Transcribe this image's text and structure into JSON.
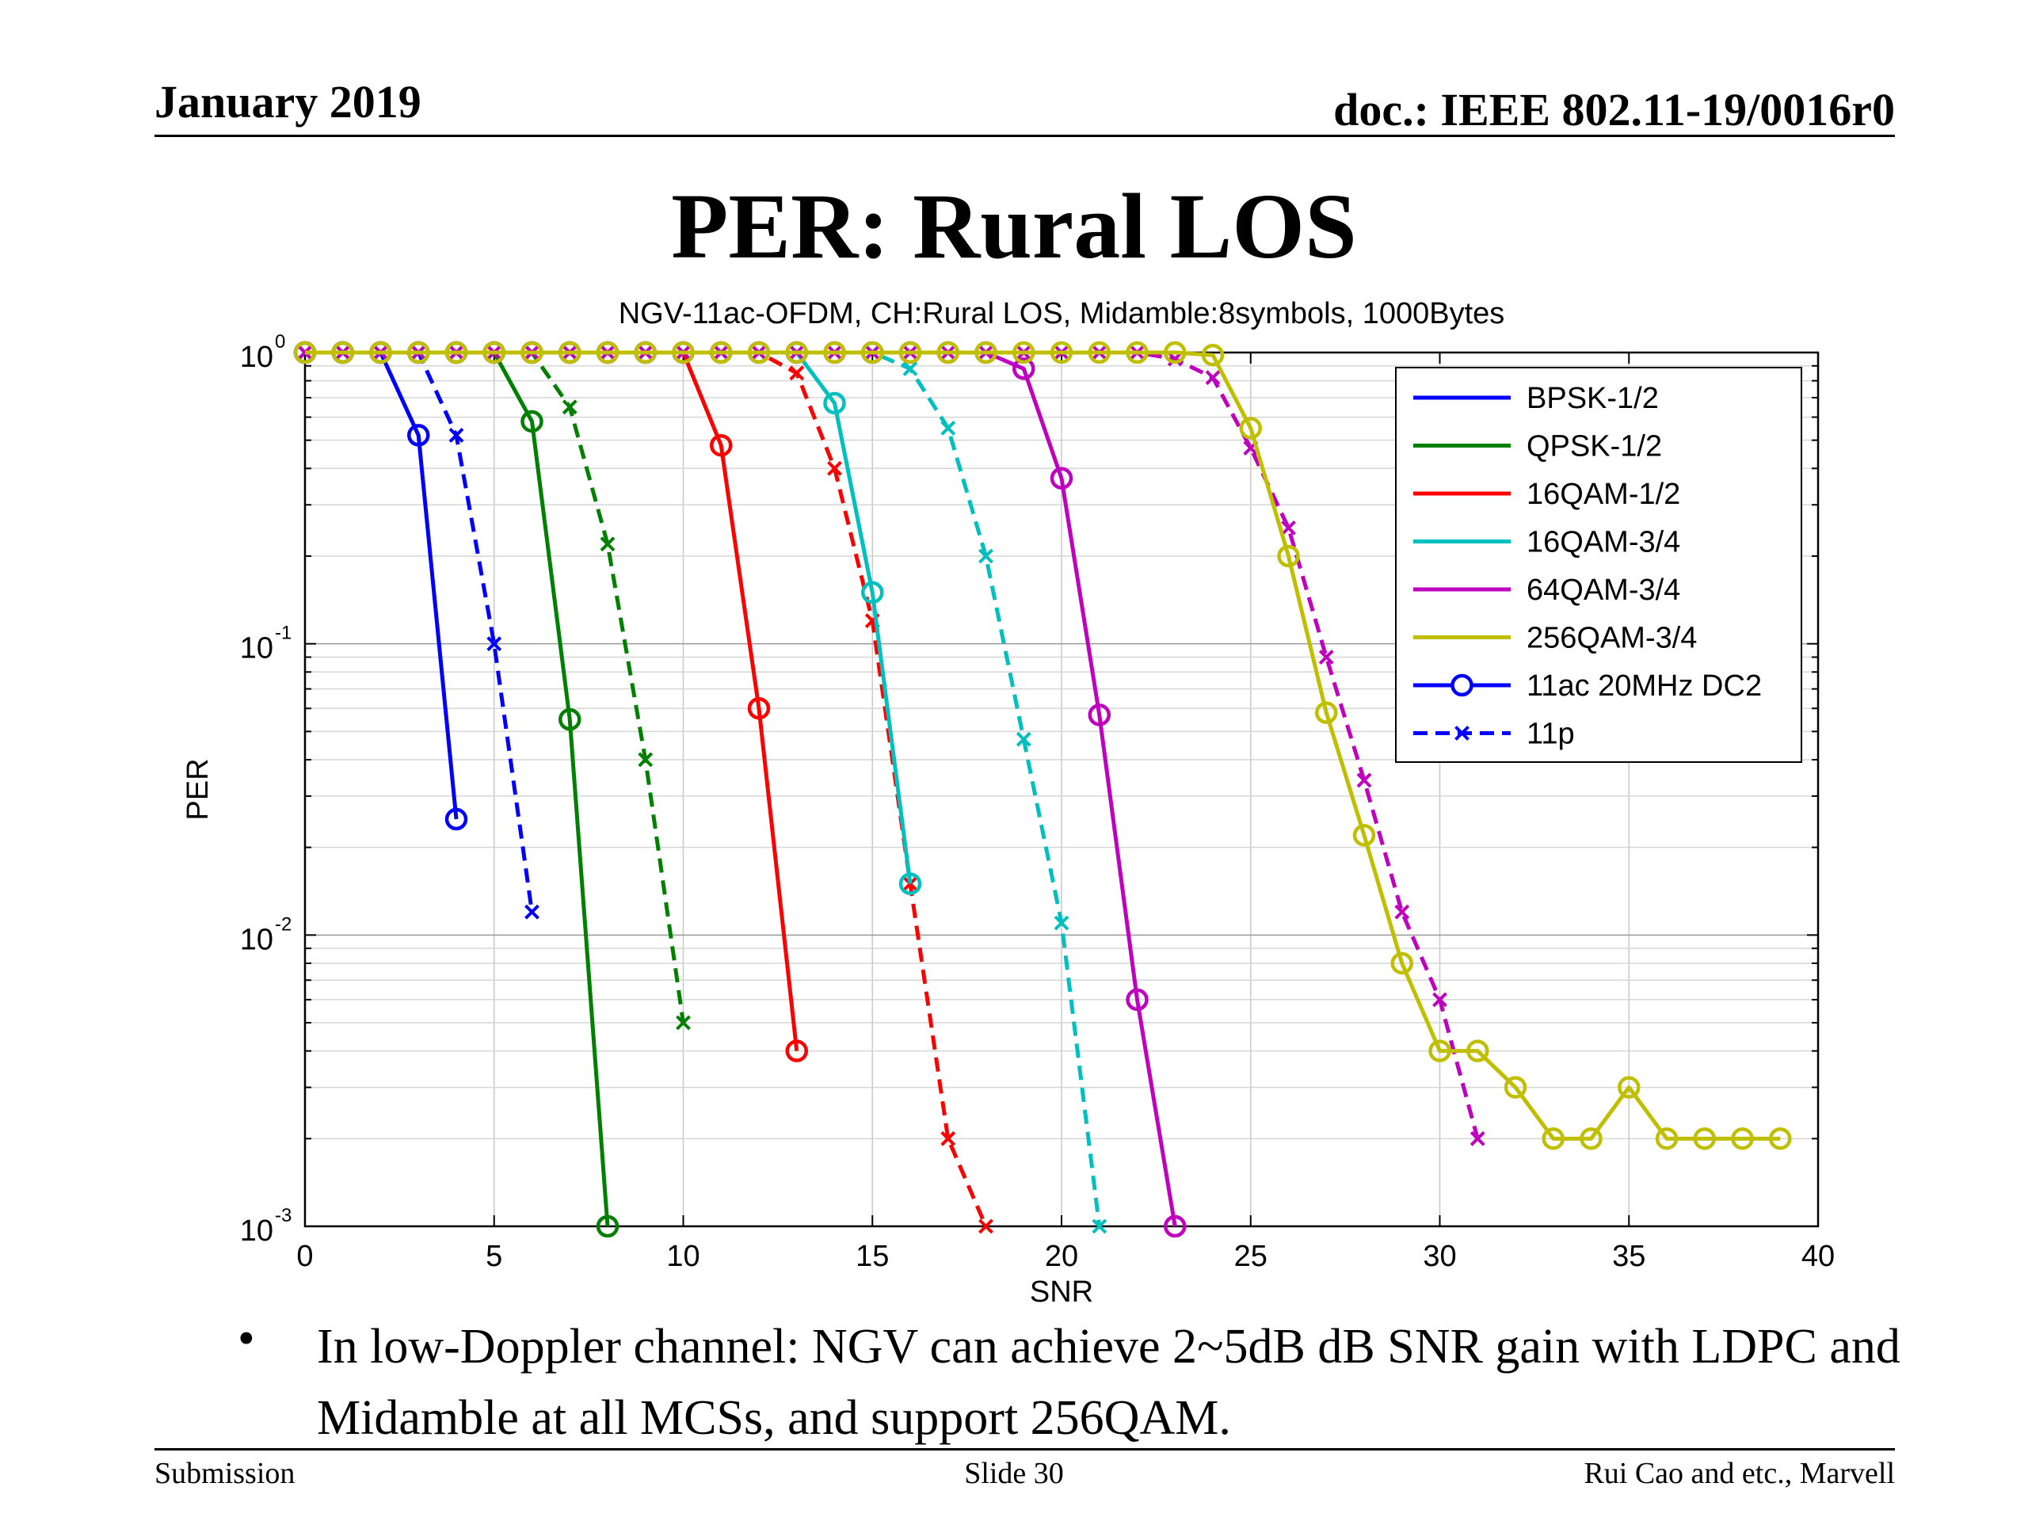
{
  "header": {
    "date": "January 2019",
    "doc": "doc.: IEEE 802.11-19/0016r0"
  },
  "slide_title": "PER: Rural LOS",
  "bullet": {
    "symbol": "•",
    "text": "In low-Doppler channel: NGV can achieve 2~5dB dB SNR gain with LDPC and Midamble at all MCSs, and support 256QAM."
  },
  "footer": {
    "left": "Submission",
    "center": "Slide 30",
    "right": "Rui Cao and etc., Marvell"
  },
  "chart_data": {
    "type": "line",
    "title": "NGV-11ac-OFDM, CH:Rural LOS, Midamble:8symbols, 1000Bytes",
    "xlabel": "SNR",
    "ylabel": "PER",
    "xlim": [
      0,
      40
    ],
    "ylim": [
      0.001,
      1
    ],
    "yscale": "log",
    "grid": true,
    "legend_position": "top-right",
    "xticks": [
      "0",
      "5",
      "10",
      "15",
      "20",
      "25",
      "30",
      "35",
      "40"
    ],
    "yticks": [
      {
        "value": 1,
        "base": "10",
        "exp": "0"
      },
      {
        "value": 0.1,
        "base": "10",
        "exp": "-1"
      },
      {
        "value": 0.01,
        "base": "10",
        "exp": "-2"
      },
      {
        "value": 0.001,
        "base": "10",
        "exp": "-3"
      }
    ],
    "legend": [
      {
        "label": "BPSK-1/2",
        "color": "#0000ff",
        "style": "line"
      },
      {
        "label": "QPSK-1/2",
        "color": "#008000",
        "style": "line"
      },
      {
        "label": "16QAM-1/2",
        "color": "#ff0000",
        "style": "line"
      },
      {
        "label": "16QAM-3/4",
        "color": "#00bfbf",
        "style": "line"
      },
      {
        "label": "64QAM-3/4",
        "color": "#bf00bf",
        "style": "line"
      },
      {
        "label": "256QAM-3/4",
        "color": "#bfbf00",
        "style": "line"
      },
      {
        "label": "11ac 20MHz DC2",
        "color": "#0000ff",
        "style": "solid-circle"
      },
      {
        "label": "11p",
        "color": "#0000ff",
        "style": "dashed-x"
      }
    ],
    "series": [
      {
        "mcs": "BPSK-1/2",
        "system": "11ac 20MHz DC2",
        "color": "#0000ff",
        "x": [
          0,
          1,
          2,
          3,
          4
        ],
        "y": [
          1,
          1,
          1,
          0.52,
          0.025
        ]
      },
      {
        "mcs": "BPSK-1/2",
        "system": "11p",
        "color": "#0000ff",
        "x": [
          0,
          1,
          2,
          3,
          4,
          5,
          6
        ],
        "y": [
          1,
          1,
          1,
          1,
          0.52,
          0.1,
          0.012
        ]
      },
      {
        "mcs": "QPSK-1/2",
        "system": "11ac 20MHz DC2",
        "color": "#008000",
        "x": [
          0,
          1,
          2,
          3,
          4,
          5,
          6,
          7,
          8
        ],
        "y": [
          1,
          1,
          1,
          1,
          1,
          1,
          0.58,
          0.055,
          0.001
        ]
      },
      {
        "mcs": "QPSK-1/2",
        "system": "11p",
        "color": "#008000",
        "x": [
          0,
          1,
          2,
          3,
          4,
          5,
          6,
          7,
          8,
          9,
          10
        ],
        "y": [
          1,
          1,
          1,
          1,
          1,
          1,
          1,
          0.65,
          0.22,
          0.04,
          0.005
        ]
      },
      {
        "mcs": "16QAM-1/2",
        "system": "11ac 20MHz DC2",
        "color": "#ff0000",
        "x": [
          0,
          1,
          2,
          3,
          4,
          5,
          6,
          7,
          8,
          9,
          10,
          11,
          12,
          13
        ],
        "y": [
          1,
          1,
          1,
          1,
          1,
          1,
          1,
          1,
          1,
          1,
          1,
          0.48,
          0.06,
          0.004
        ]
      },
      {
        "mcs": "16QAM-1/2",
        "system": "11p",
        "color": "#ff0000",
        "x": [
          0,
          1,
          2,
          3,
          4,
          5,
          6,
          7,
          8,
          9,
          10,
          11,
          12,
          13,
          14,
          15,
          16,
          17,
          18
        ],
        "y": [
          1,
          1,
          1,
          1,
          1,
          1,
          1,
          1,
          1,
          1,
          1,
          1,
          1,
          0.85,
          0.4,
          0.12,
          0.015,
          0.002,
          0.001
        ]
      },
      {
        "mcs": "16QAM-3/4",
        "system": "11ac 20MHz DC2",
        "color": "#00bfbf",
        "x": [
          0,
          1,
          2,
          3,
          4,
          5,
          6,
          7,
          8,
          9,
          10,
          11,
          12,
          13,
          14,
          15,
          16
        ],
        "y": [
          1,
          1,
          1,
          1,
          1,
          1,
          1,
          1,
          1,
          1,
          1,
          1,
          1,
          1,
          0.67,
          0.15,
          0.015
        ]
      },
      {
        "mcs": "16QAM-3/4",
        "system": "11p",
        "color": "#00bfbf",
        "x": [
          0,
          1,
          2,
          3,
          4,
          5,
          6,
          7,
          8,
          9,
          10,
          11,
          12,
          13,
          14,
          15,
          16,
          17,
          18,
          19,
          20,
          21
        ],
        "y": [
          1,
          1,
          1,
          1,
          1,
          1,
          1,
          1,
          1,
          1,
          1,
          1,
          1,
          1,
          1,
          1,
          0.88,
          0.55,
          0.2,
          0.047,
          0.011,
          0.001
        ]
      },
      {
        "mcs": "64QAM-3/4",
        "system": "11ac 20MHz DC2",
        "color": "#bf00bf",
        "x": [
          0,
          1,
          2,
          3,
          4,
          5,
          6,
          7,
          8,
          9,
          10,
          11,
          12,
          13,
          14,
          15,
          16,
          17,
          18,
          19,
          20,
          21,
          22,
          23
        ],
        "y": [
          1,
          1,
          1,
          1,
          1,
          1,
          1,
          1,
          1,
          1,
          1,
          1,
          1,
          1,
          1,
          1,
          1,
          1,
          1,
          0.88,
          0.37,
          0.057,
          0.006,
          0.001
        ]
      },
      {
        "mcs": "64QAM-3/4",
        "system": "11p",
        "color": "#bf00bf",
        "x": [
          0,
          1,
          2,
          3,
          4,
          5,
          6,
          7,
          8,
          9,
          10,
          11,
          12,
          13,
          14,
          15,
          16,
          17,
          18,
          19,
          20,
          21,
          22,
          23,
          24,
          25,
          26,
          27,
          28,
          29,
          30,
          31
        ],
        "y": [
          1,
          1,
          1,
          1,
          1,
          1,
          1,
          1,
          1,
          1,
          1,
          1,
          1,
          1,
          1,
          1,
          1,
          1,
          1,
          1,
          1,
          1,
          1,
          0.95,
          0.82,
          0.47,
          0.25,
          0.09,
          0.034,
          0.012,
          0.006,
          0.002
        ]
      },
      {
        "mcs": "256QAM-3/4",
        "system": "11ac 20MHz DC2",
        "color": "#bfbf00",
        "x": [
          0,
          1,
          2,
          3,
          4,
          5,
          6,
          7,
          8,
          9,
          10,
          11,
          12,
          13,
          14,
          15,
          16,
          17,
          18,
          19,
          20,
          21,
          22,
          23,
          24,
          25,
          26,
          27,
          28,
          29,
          30,
          31,
          32,
          33,
          34,
          35,
          36,
          37,
          38,
          39
        ],
        "y": [
          1,
          1,
          1,
          1,
          1,
          1,
          1,
          1,
          1,
          1,
          1,
          1,
          1,
          1,
          1,
          1,
          1,
          1,
          1,
          1,
          1,
          1,
          1,
          1,
          0.98,
          0.55,
          0.2,
          0.058,
          0.022,
          0.008,
          0.004,
          0.004,
          0.003,
          0.002,
          0.002,
          0.003,
          0.002,
          0.002,
          0.002,
          0.002
        ]
      }
    ]
  }
}
